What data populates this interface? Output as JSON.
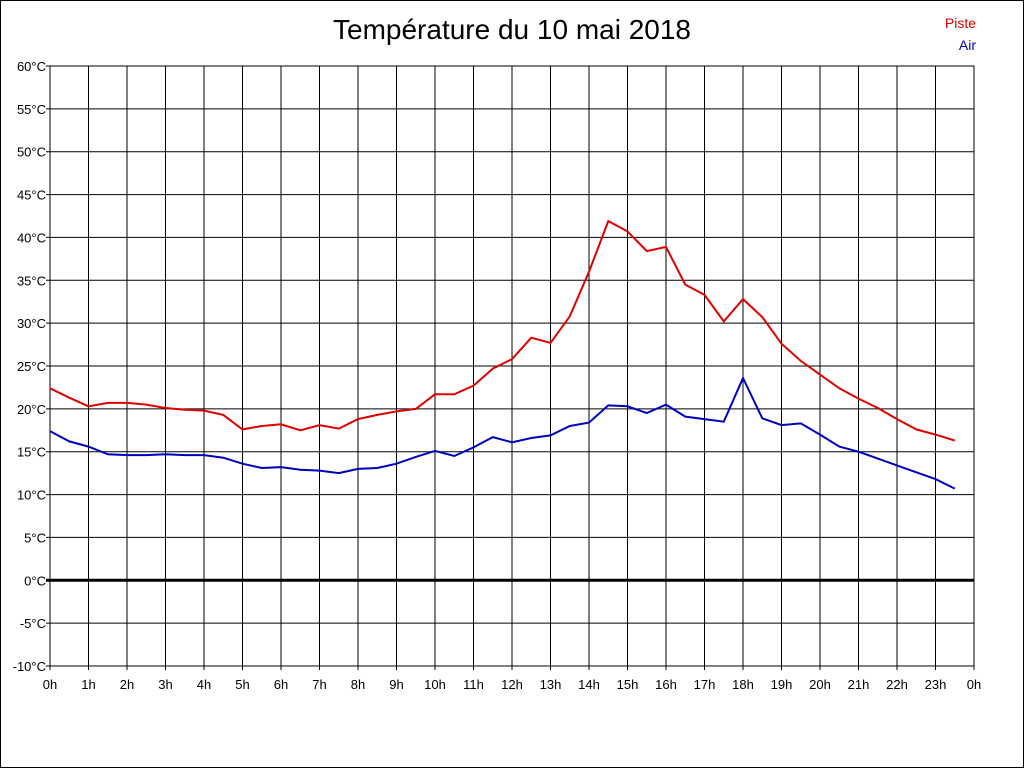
{
  "chart_data": {
    "type": "line",
    "title": "Température du 10 mai 2018",
    "ylim": [
      -10,
      60
    ],
    "xlim": [
      0,
      24
    ],
    "yticks": [
      60,
      55,
      50,
      45,
      40,
      35,
      30,
      25,
      20,
      15,
      10,
      5,
      0,
      -5,
      -10
    ],
    "ytick_labels": [
      "60°C",
      "55°C",
      "50°C",
      "45°C",
      "40°C",
      "35°C",
      "30°C",
      "25°C",
      "20°C",
      "15°C",
      "10°C",
      "5°C",
      "0°C",
      "-5°C",
      "-10°C"
    ],
    "xtick_labels": [
      "0h",
      "1h",
      "2h",
      "3h",
      "4h",
      "5h",
      "6h",
      "7h",
      "8h",
      "9h",
      "10h",
      "11h",
      "12h",
      "13h",
      "14h",
      "15h",
      "16h",
      "17h",
      "18h",
      "19h",
      "20h",
      "21h",
      "22h",
      "23h",
      "0h"
    ],
    "grid": true,
    "legend_position": "top-right",
    "zero_line": true,
    "x": [
      0,
      0.5,
      1,
      1.5,
      2,
      2.5,
      3,
      3.5,
      4,
      4.5,
      5,
      5.5,
      6,
      6.5,
      7,
      7.5,
      8,
      8.5,
      9,
      9.5,
      10,
      10.5,
      11,
      11.5,
      12,
      12.5,
      13,
      13.5,
      14,
      14.5,
      15,
      15.5,
      16,
      16.5,
      17,
      17.5,
      18,
      18.5,
      19,
      19.5,
      20,
      20.5,
      21,
      21.5,
      22,
      22.5,
      23,
      23.5
    ],
    "series": [
      {
        "name": "Piste",
        "color": "#dd0000",
        "values": [
          22.4,
          21.3,
          20.3,
          20.7,
          20.7,
          20.5,
          20.1,
          19.9,
          19.8,
          19.3,
          17.6,
          18.0,
          18.2,
          17.5,
          18.1,
          17.7,
          18.8,
          19.3,
          19.7,
          20.0,
          21.7,
          21.7,
          22.7,
          24.7,
          25.8,
          28.3,
          27.7,
          30.8,
          36.0,
          41.9,
          40.7,
          38.4,
          38.9,
          34.5,
          33.3,
          30.2,
          32.8,
          30.7,
          27.6,
          25.6,
          24.0,
          22.4,
          21.2,
          20.1,
          18.8,
          17.6,
          17.0,
          16.3
        ]
      },
      {
        "name": "Air",
        "color": "#0000bb",
        "values": [
          17.4,
          16.2,
          15.6,
          14.7,
          14.6,
          14.6,
          14.7,
          14.6,
          14.6,
          14.3,
          13.6,
          13.1,
          13.2,
          12.9,
          12.8,
          12.5,
          13.0,
          13.1,
          13.6,
          14.4,
          15.1,
          14.5,
          15.5,
          16.7,
          16.1,
          16.6,
          16.9,
          18.0,
          18.4,
          20.4,
          20.3,
          19.5,
          20.5,
          19.1,
          18.8,
          18.5,
          23.6,
          18.9,
          18.1,
          18.3,
          17.0,
          15.6,
          15.0,
          14.2,
          13.4,
          12.6,
          11.8,
          10.7
        ]
      }
    ]
  }
}
